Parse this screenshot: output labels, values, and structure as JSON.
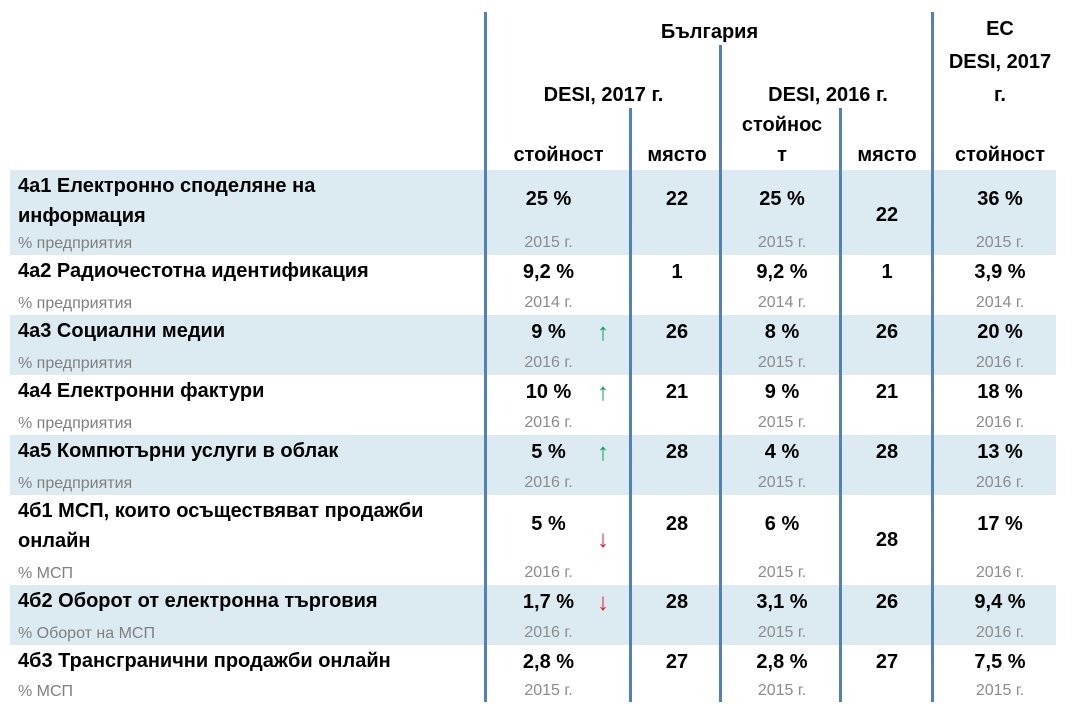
{
  "header": {
    "bulgaria": "България",
    "eu_line1": "ЕС",
    "eu_line2": "DESI, 2017",
    "eu_line3": "г.",
    "desi2017": "DESI, 2017 г.",
    "desi2016": "DESI, 2016 г.",
    "value_2017": "стойност",
    "rank_2017": "място",
    "value_2016_line1": "стойнос",
    "value_2016_line2": "т",
    "rank_2016": "място",
    "value_eu": "стойност"
  },
  "rows": [
    {
      "label_line1": "4а1 Електронно споделяне на",
      "label_line2": "информация",
      "unit": "% предприятия",
      "bg17_value": "25 %",
      "bg17_year": "2015 г.",
      "bg17_trend": "",
      "bg17_rank": "22",
      "bg16_value": "25 %",
      "bg16_year": "2015 г.",
      "bg16_rank": "22",
      "eu_value": "36 %",
      "eu_year": "2015 г."
    },
    {
      "label_line1": "4а2 Радиочестотна идентификация",
      "label_line2": "",
      "unit": "% предприятия",
      "bg17_value": "9,2 %",
      "bg17_year": "2014 г.",
      "bg17_trend": "",
      "bg17_rank": "1",
      "bg16_value": "9,2 %",
      "bg16_year": "2014 г.",
      "bg16_rank": "1",
      "eu_value": "3,9 %",
      "eu_year": "2014 г."
    },
    {
      "label_line1": "4а3 Социални медии",
      "label_line2": "",
      "unit": "% предприятия",
      "bg17_value": "9 %",
      "bg17_year": "2016 г.",
      "bg17_trend": "up",
      "bg17_rank": "26",
      "bg16_value": "8 %",
      "bg16_year": "2015 г.",
      "bg16_rank": "26",
      "eu_value": "20 %",
      "eu_year": "2016 г."
    },
    {
      "label_line1": "4а4 Електронни фактури",
      "label_line2": "",
      "unit": "% предприятия",
      "bg17_value": "10 %",
      "bg17_year": "2016 г.",
      "bg17_trend": "up",
      "bg17_rank": "21",
      "bg16_value": "9 %",
      "bg16_year": "2015 г.",
      "bg16_rank": "21",
      "eu_value": "18 %",
      "eu_year": "2016 г."
    },
    {
      "label_line1": "4а5 Компютърни услуги в облак",
      "label_line2": "",
      "unit": "% предприятия",
      "bg17_value": "5 %",
      "bg17_year": "2016 г.",
      "bg17_trend": "up",
      "bg17_rank": "28",
      "bg16_value": "4 %",
      "bg16_year": "2015 г.",
      "bg16_rank": "28",
      "eu_value": "13 %",
      "eu_year": "2016 г."
    },
    {
      "label_line1": "4б1 МСП, които осъществяват продажби",
      "label_line2": "онлайн",
      "unit": "% МСП",
      "bg17_value": "5 %",
      "bg17_year": "2016 г.",
      "bg17_trend": "down",
      "bg17_rank": "28",
      "bg16_value": "6 %",
      "bg16_year": "2015 г.",
      "bg16_rank": "28",
      "eu_value": "17 %",
      "eu_year": "2016 г."
    },
    {
      "label_line1": "4б2 Оборот от електронна търговия",
      "label_line2": "",
      "unit": "% Оборот на МСП",
      "bg17_value": "1,7 %",
      "bg17_year": "2016 г.",
      "bg17_trend": "down",
      "bg17_rank": "28",
      "bg16_value": "3,1 %",
      "bg16_year": "2015 г.",
      "bg16_rank": "26",
      "eu_value": "9,4 %",
      "eu_year": "2016 г."
    },
    {
      "label_line1": "4б3 Трансгранични продажби онлайн",
      "label_line2": "",
      "unit": "% МСП",
      "bg17_value": "2,8 %",
      "bg17_year": "2015 г.",
      "bg17_trend": "",
      "bg17_rank": "27",
      "bg16_value": "2,8 %",
      "bg16_year": "2015 г.",
      "bg16_rank": "27",
      "eu_value": "7,5 %",
      "eu_year": "2015 г."
    }
  ],
  "colors": {
    "shade": "#dcebf1",
    "divider": "#4f81bd",
    "up": "#00a651",
    "down": "#e31e24",
    "muted": "#7f7f7f"
  },
  "icons": {
    "up": "up-arrow-icon",
    "down": "down-arrow-icon"
  }
}
